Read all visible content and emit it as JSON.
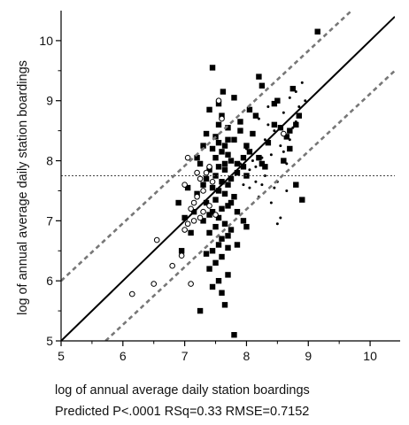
{
  "chart_data": {
    "type": "scatter",
    "title": "",
    "xlabel": "log of annual average daily station boardings",
    "ylabel": "log of annual average daily station boardings",
    "subtitle": "Predicted P<.0001 RSq=0.33 RMSE=0.7152",
    "xlim": [
      5,
      10.4
    ],
    "ylim": [
      5,
      10.5
    ],
    "xticks": [
      5,
      6,
      7,
      8,
      9,
      10
    ],
    "yticks": [
      5,
      6,
      7,
      8,
      9,
      10
    ],
    "grid": false,
    "reference_lines": {
      "identity": {
        "from": [
          5,
          5
        ],
        "to": [
          10.4,
          10.4
        ]
      },
      "mean_y": 7.75,
      "confidence_upper": {
        "from": [
          5,
          6.0
        ],
        "to": [
          9.7,
          10.5
        ]
      },
      "confidence_lower": {
        "from": [
          5.72,
          5.0
        ],
        "to": [
          10.4,
          9.5
        ]
      }
    },
    "series": [
      {
        "marker": "filled-square",
        "points": [
          [
            7.45,
            9.55
          ],
          [
            7.62,
            9.15
          ],
          [
            8.2,
            9.4
          ],
          [
            8.25,
            9.25
          ],
          [
            8.75,
            9.2
          ],
          [
            8.45,
            8.95
          ],
          [
            8.5,
            9.0
          ],
          [
            7.8,
            9.05
          ],
          [
            7.55,
            8.95
          ],
          [
            8.05,
            8.85
          ],
          [
            7.9,
            8.65
          ],
          [
            8.15,
            8.75
          ],
          [
            8.7,
            8.5
          ],
          [
            8.8,
            8.6
          ],
          [
            8.85,
            8.75
          ],
          [
            7.7,
            8.55
          ],
          [
            7.35,
            8.45
          ],
          [
            7.5,
            8.4
          ],
          [
            7.55,
            8.3
          ],
          [
            7.65,
            8.25
          ],
          [
            7.45,
            8.2
          ],
          [
            7.6,
            8.15
          ],
          [
            7.7,
            8.1
          ],
          [
            7.75,
            8.0
          ],
          [
            7.5,
            8.05
          ],
          [
            7.65,
            7.95
          ],
          [
            7.55,
            7.9
          ],
          [
            7.4,
            7.85
          ],
          [
            7.85,
            7.8
          ],
          [
            7.95,
            7.9
          ],
          [
            8.0,
            7.75
          ],
          [
            7.35,
            7.7
          ],
          [
            7.6,
            7.65
          ],
          [
            7.7,
            7.6
          ],
          [
            7.45,
            7.55
          ],
          [
            7.55,
            7.5
          ],
          [
            7.65,
            7.45
          ],
          [
            7.2,
            7.45
          ],
          [
            7.8,
            7.4
          ],
          [
            7.5,
            7.35
          ],
          [
            7.35,
            7.3
          ],
          [
            7.7,
            7.25
          ],
          [
            7.6,
            7.2
          ],
          [
            7.45,
            7.15
          ],
          [
            7.4,
            7.1
          ],
          [
            7.55,
            7.05
          ],
          [
            7.3,
            7.0
          ],
          [
            7.65,
            6.95
          ],
          [
            7.5,
            6.9
          ],
          [
            7.75,
            6.85
          ],
          [
            7.4,
            6.8
          ],
          [
            7.6,
            6.7
          ],
          [
            7.55,
            6.6
          ],
          [
            7.7,
            6.55
          ],
          [
            7.45,
            6.5
          ],
          [
            7.35,
            6.45
          ],
          [
            7.6,
            6.4
          ],
          [
            7.5,
            6.3
          ],
          [
            7.4,
            6.2
          ],
          [
            7.7,
            6.1
          ],
          [
            7.55,
            6.0
          ],
          [
            7.45,
            5.9
          ],
          [
            7.6,
            5.8
          ],
          [
            7.25,
            5.5
          ],
          [
            7.65,
            5.6
          ],
          [
            7.8,
            5.1
          ],
          [
            6.95,
            6.5
          ],
          [
            7.1,
            6.8
          ],
          [
            7.0,
            7.05
          ],
          [
            7.15,
            7.15
          ],
          [
            6.9,
            7.3
          ],
          [
            7.05,
            7.55
          ],
          [
            7.2,
            8.05
          ],
          [
            7.3,
            8.25
          ],
          [
            7.8,
            8.35
          ],
          [
            7.9,
            8.5
          ],
          [
            8.05,
            8.15
          ],
          [
            8.25,
            7.95
          ],
          [
            7.85,
            7.15
          ],
          [
            7.95,
            7.0
          ],
          [
            8.0,
            6.9
          ],
          [
            7.85,
            6.6
          ],
          [
            7.7,
            6.75
          ],
          [
            8.7,
            8.2
          ],
          [
            8.9,
            7.35
          ],
          [
            8.8,
            7.6
          ],
          [
            8.6,
            8.0
          ],
          [
            8.35,
            8.3
          ],
          [
            8.1,
            8.45
          ],
          [
            7.75,
            7.7
          ],
          [
            7.65,
            7.85
          ],
          [
            7.95,
            8.05
          ],
          [
            7.55,
            8.6
          ],
          [
            7.4,
            8.85
          ],
          [
            7.6,
            8.75
          ],
          [
            7.7,
            8.35
          ],
          [
            7.25,
            7.95
          ],
          [
            7.5,
            7.75
          ],
          [
            7.3,
            7.6
          ],
          [
            7.75,
            7.3
          ],
          [
            7.85,
            7.95
          ],
          [
            8.0,
            8.25
          ],
          [
            8.2,
            8.05
          ],
          [
            8.3,
            7.9
          ],
          [
            8.45,
            8.6
          ],
          [
            8.55,
            8.55
          ],
          [
            8.65,
            8.4
          ],
          [
            9.15,
            10.15
          ]
        ]
      },
      {
        "marker": "open-circle",
        "points": [
          [
            6.15,
            5.78
          ],
          [
            6.5,
            5.95
          ],
          [
            6.55,
            6.68
          ],
          [
            6.8,
            6.25
          ],
          [
            6.95,
            6.42
          ],
          [
            7.0,
            6.85
          ],
          [
            7.05,
            6.95
          ],
          [
            7.1,
            7.2
          ],
          [
            7.15,
            7.3
          ],
          [
            7.25,
            7.05
          ],
          [
            7.3,
            7.5
          ],
          [
            7.35,
            7.8
          ],
          [
            7.4,
            7.9
          ],
          [
            7.2,
            7.4
          ],
          [
            7.1,
            5.95
          ],
          [
            7.05,
            8.05
          ],
          [
            7.45,
            7.65
          ],
          [
            7.3,
            7.15
          ],
          [
            7.25,
            7.7
          ],
          [
            7.5,
            7.1
          ],
          [
            7.15,
            7.0
          ],
          [
            7.4,
            7.25
          ],
          [
            7.0,
            7.6
          ],
          [
            7.6,
            8.7
          ],
          [
            7.55,
            9.0
          ],
          [
            8.6,
            8.45
          ],
          [
            7.2,
            7.8
          ]
        ]
      },
      {
        "marker": "small-dot",
        "points": [
          [
            7.9,
            7.95
          ],
          [
            8.05,
            7.85
          ],
          [
            8.15,
            7.9
          ],
          [
            8.25,
            8.05
          ],
          [
            8.3,
            7.75
          ],
          [
            8.4,
            8.1
          ],
          [
            8.45,
            7.55
          ],
          [
            8.5,
            7.65
          ],
          [
            8.55,
            8.25
          ],
          [
            8.6,
            8.15
          ],
          [
            8.65,
            7.95
          ],
          [
            8.7,
            8.35
          ],
          [
            8.75,
            8.55
          ],
          [
            8.8,
            8.65
          ],
          [
            8.55,
            7.05
          ],
          [
            8.5,
            6.95
          ],
          [
            8.65,
            7.5
          ],
          [
            8.4,
            7.3
          ],
          [
            8.2,
            7.4
          ],
          [
            8.3,
            8.35
          ],
          [
            8.1,
            8.0
          ],
          [
            8.0,
            8.2
          ],
          [
            8.35,
            8.6
          ],
          [
            8.45,
            8.5
          ],
          [
            8.6,
            8.8
          ],
          [
            8.7,
            9.05
          ],
          [
            8.8,
            9.15
          ],
          [
            8.9,
            9.3
          ],
          [
            8.35,
            8.9
          ],
          [
            8.2,
            8.7
          ],
          [
            7.95,
            7.6
          ],
          [
            8.05,
            7.55
          ],
          [
            8.15,
            7.65
          ],
          [
            8.25,
            7.6
          ],
          [
            8.85,
            8.9
          ],
          [
            8.95,
            9.0
          ]
        ]
      }
    ]
  }
}
